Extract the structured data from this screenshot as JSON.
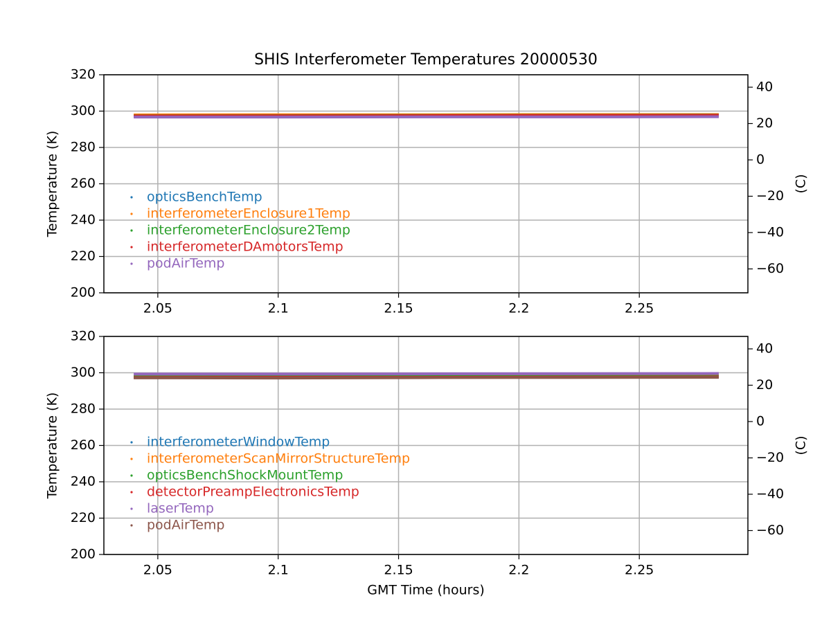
{
  "chart_data": [
    {
      "type": "line",
      "title": "SHIS Interferometer Temperatures 20000530",
      "ylabel": "Temperature (K)",
      "y2label": "(C)",
      "x": [
        2.04,
        2.1,
        2.16,
        2.22,
        2.283
      ],
      "xlim": [
        2.0276,
        2.2951
      ],
      "xticks": [
        2.05,
        2.1,
        2.15,
        2.2,
        2.25
      ],
      "ylim": [
        200,
        320
      ],
      "yticks": [
        200,
        220,
        240,
        260,
        280,
        300,
        320
      ],
      "y2lim": [
        -73.15,
        46.85
      ],
      "y2ticks": [
        {
          "value": -60,
          "label": "−60"
        },
        {
          "value": -40,
          "label": "−40"
        },
        {
          "value": -20,
          "label": "−20"
        },
        0,
        20,
        40
      ],
      "grid": true,
      "legend": "lower left",
      "series": [
        {
          "name": "opticsBenchTemp",
          "color": "#1f77b4",
          "values": [
            297.2,
            297.2,
            297.3,
            297.4,
            297.5
          ]
        },
        {
          "name": "interferometerEnclosure1Temp",
          "color": "#ff7f0e",
          "values": [
            297.9,
            298.0,
            298.0,
            298.1,
            298.1
          ]
        },
        {
          "name": "interferometerEnclosure2Temp",
          "color": "#2ca02c",
          "values": [
            297.4,
            297.5,
            297.6,
            297.7,
            297.8
          ]
        },
        {
          "name": "interferometerDAmotorsTemp",
          "color": "#d62728",
          "values": [
            297.3,
            297.4,
            297.5,
            297.6,
            297.7
          ]
        },
        {
          "name": "podAirTemp",
          "color": "#9467bd",
          "values": [
            296.7,
            296.7,
            296.8,
            296.8,
            296.9
          ]
        }
      ]
    },
    {
      "type": "line",
      "xlabel": "GMT Time (hours)",
      "ylabel": "Temperature (K)",
      "y2label": "(C)",
      "x": [
        2.04,
        2.1,
        2.16,
        2.22,
        2.283
      ],
      "xlim": [
        2.0276,
        2.2951
      ],
      "xticks": [
        2.05,
        2.1,
        2.15,
        2.2,
        2.25
      ],
      "ylim": [
        200,
        320
      ],
      "yticks": [
        200,
        220,
        240,
        260,
        280,
        300,
        320
      ],
      "y2lim": [
        -73.15,
        46.85
      ],
      "y2ticks": [
        {
          "value": -60,
          "label": "−60"
        },
        {
          "value": -40,
          "label": "−40"
        },
        {
          "value": -20,
          "label": "−20"
        },
        0,
        20,
        40
      ],
      "grid": true,
      "legend": "lower left",
      "series": [
        {
          "name": "interferometerWindowTemp",
          "color": "#1f77b4",
          "values": [
            298.0,
            298.1,
            298.2,
            298.2,
            298.3
          ]
        },
        {
          "name": "interferometerScanMirrorStructureTemp",
          "color": "#ff7f0e",
          "values": [
            298.2,
            298.2,
            298.3,
            298.3,
            298.4
          ]
        },
        {
          "name": "opticsBenchShockMountTemp",
          "color": "#2ca02c",
          "values": [
            297.8,
            297.9,
            297.9,
            298.0,
            298.0
          ]
        },
        {
          "name": "detectorPreampElectronicsTemp",
          "color": "#d62728",
          "values": [
            297.4,
            297.5,
            297.5,
            297.6,
            297.7
          ]
        },
        {
          "name": "laserTemp",
          "color": "#9467bd",
          "values": [
            299.3,
            299.3,
            299.4,
            299.5,
            299.6
          ]
        },
        {
          "name": "podAirTemp",
          "color": "#8c564b",
          "values": [
            297.2,
            297.1,
            297.3,
            297.4,
            297.5
          ]
        }
      ]
    }
  ]
}
